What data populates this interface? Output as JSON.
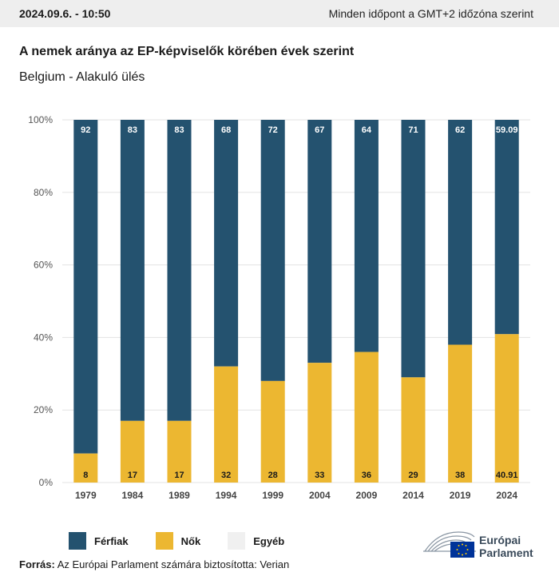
{
  "header": {
    "datetime": "2024.09.6. - 10:50",
    "timezone_note": "Minden időpont a GMT+2 időzóna szerint"
  },
  "title": "A nemek aránya az EP-képviselők körében évek szerint",
  "subtitle": "Belgium - Alakuló ülés",
  "chart_data": {
    "type": "bar",
    "stacked": true,
    "categories": [
      "1979",
      "1984",
      "1989",
      "1994",
      "1999",
      "2004",
      "2009",
      "2014",
      "2019",
      "2024"
    ],
    "series": [
      {
        "name": "Nők",
        "color": "#ecb731",
        "values": [
          8,
          17,
          17,
          32,
          28,
          33,
          36,
          29,
          38,
          40.91
        ]
      },
      {
        "name": "Férfiak",
        "color": "#24526f",
        "values": [
          92,
          83,
          83,
          68,
          72,
          67,
          64,
          71,
          62,
          59.09
        ]
      },
      {
        "name": "Egyéb",
        "color": "#f0f0f0",
        "values": [
          0,
          0,
          0,
          0,
          0,
          0,
          0,
          0,
          0,
          0
        ]
      }
    ],
    "ylim": [
      0,
      100
    ],
    "yticks": [
      "0%",
      "20%",
      "40%",
      "60%",
      "80%",
      "100%"
    ],
    "grid": true,
    "legend_position": "bottom-left"
  },
  "legend": [
    {
      "label": "Férfiak",
      "color": "#24526f"
    },
    {
      "label": "Nők",
      "color": "#ecb731"
    },
    {
      "label": "Egyéb",
      "color": "#f0f0f0"
    }
  ],
  "source": {
    "label": "Forrás:",
    "text": "Az Európai Parlament számára biztosította: Verian"
  },
  "logo": {
    "line1": "Európai",
    "line2": "Parlament"
  }
}
